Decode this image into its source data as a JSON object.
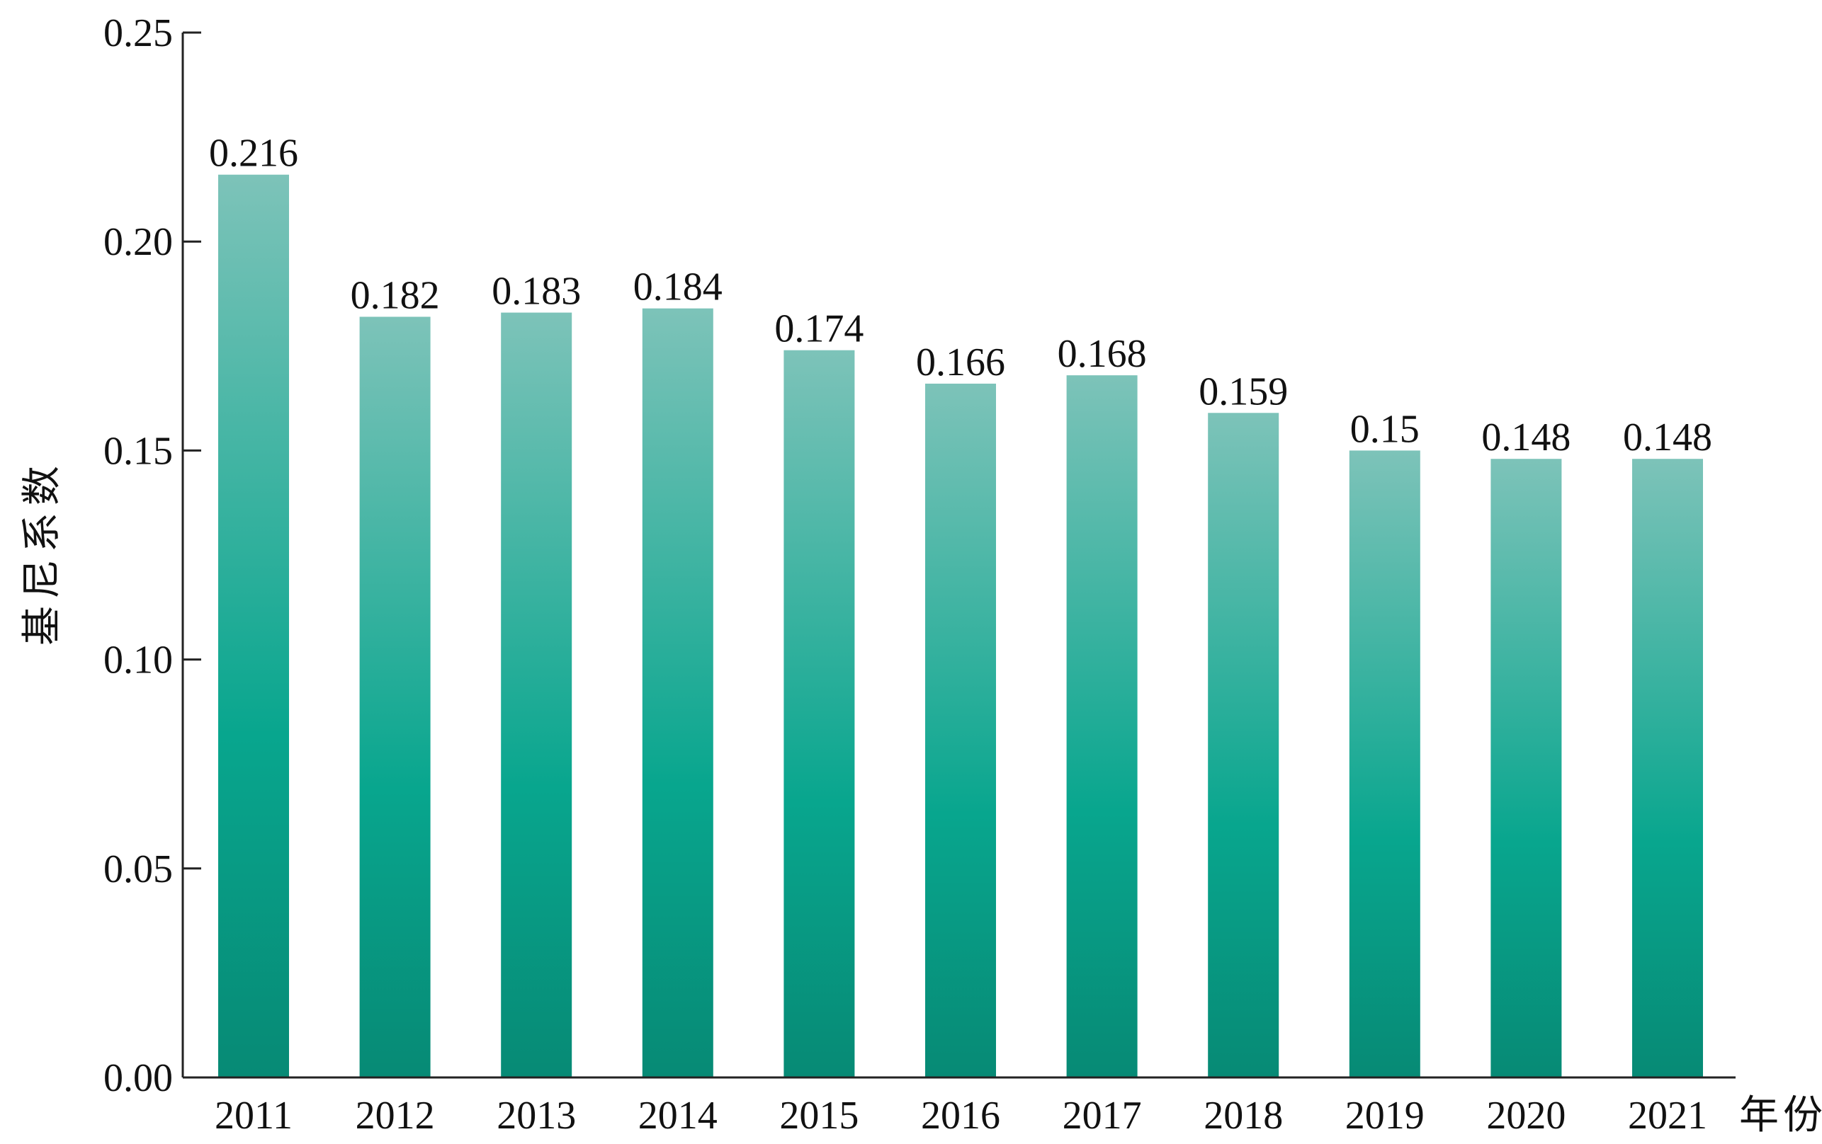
{
  "chart_data": {
    "type": "bar",
    "title": "",
    "xlabel": "年份",
    "ylabel": "基尼系数",
    "categories": [
      "2011",
      "2012",
      "2013",
      "2014",
      "2015",
      "2016",
      "2017",
      "2018",
      "2019",
      "2020",
      "2021"
    ],
    "values": [
      0.216,
      0.182,
      0.183,
      0.184,
      0.174,
      0.166,
      0.168,
      0.159,
      0.15,
      0.148,
      0.148
    ],
    "data_labels": [
      "0.216",
      "0.182",
      "0.183",
      "0.184",
      "0.174",
      "0.166",
      "0.168",
      "0.159",
      "0.15",
      "0.148",
      "0.148"
    ],
    "ylim": [
      0,
      0.25
    ],
    "yticks": [
      0,
      0.05,
      0.1,
      0.15,
      0.2,
      0.25
    ],
    "ytick_labels": [
      "0.00",
      "0.05",
      "0.10",
      "0.15",
      "0.20",
      "0.25"
    ],
    "grid": false,
    "legend": "none",
    "colors": {
      "bar_top": "#7dc3b9",
      "bar_mid": "#08a68e",
      "bar_bottom": "#078a75",
      "axis": "#222222"
    }
  }
}
